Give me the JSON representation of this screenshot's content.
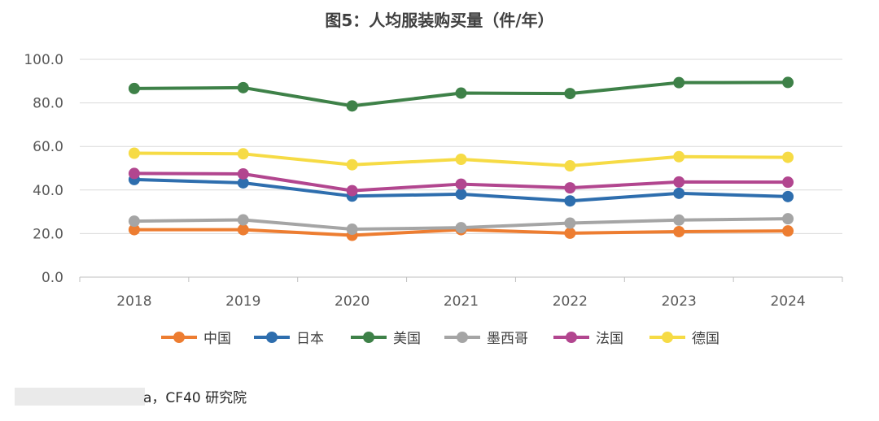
{
  "chart_data": {
    "type": "line",
    "title": "图5：人均服装购买量（件/年）",
    "categories": [
      "2018",
      "2019",
      "2020",
      "2021",
      "2022",
      "2023",
      "2024"
    ],
    "ylim": [
      0,
      100
    ],
    "yticks": [
      "0.0",
      "20.0",
      "40.0",
      "60.0",
      "80.0",
      "100.0"
    ],
    "grid": true,
    "legend_position": "bottom",
    "series": [
      {
        "name": "中国",
        "color": "#ED7D31",
        "values": [
          21.8,
          21.8,
          19.2,
          21.8,
          20.2,
          20.9,
          21.2
        ]
      },
      {
        "name": "日本",
        "color": "#2E6EAE",
        "values": [
          44.8,
          43.3,
          37.2,
          38.1,
          35.0,
          38.5,
          37.0
        ]
      },
      {
        "name": "美国",
        "color": "#3E8148",
        "values": [
          86.6,
          87.0,
          78.6,
          84.5,
          84.3,
          89.3,
          89.4
        ]
      },
      {
        "name": "墨西哥",
        "color": "#A5A5A5",
        "values": [
          25.7,
          26.3,
          22.0,
          22.7,
          24.8,
          26.2,
          26.8
        ]
      },
      {
        "name": "法国",
        "color": "#B2468F",
        "values": [
          47.6,
          47.4,
          39.7,
          42.7,
          41.0,
          43.7,
          43.6
        ]
      },
      {
        "name": "德国",
        "color": "#F6DB45",
        "values": [
          56.9,
          56.6,
          51.6,
          54.1,
          51.1,
          55.3,
          55.0
        ]
      }
    ]
  },
  "source": {
    "text": "a，CF40 研究院"
  }
}
